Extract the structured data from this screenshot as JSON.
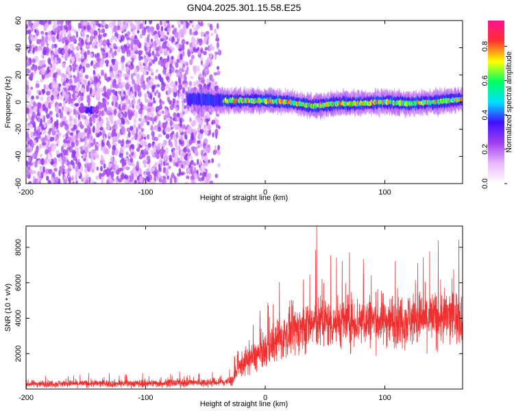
{
  "title": "GN04.2025.301.15.58.E25",
  "chart_data": [
    {
      "type": "heatmap",
      "xlabel": "Height of straight line (km)",
      "ylabel": "Frequency (Hz)",
      "xlim": [
        -200,
        165
      ],
      "ylim": [
        -60,
        60
      ],
      "xticks": [
        -200,
        -100,
        0,
        100
      ],
      "yticks": [
        60,
        40,
        20,
        0,
        -20,
        -40,
        -60
      ],
      "colorbar": {
        "label": "Normalized spectral amplitude",
        "range": [
          0,
          0.95
        ],
        "ticks": [
          0.0,
          0.2,
          0.4,
          0.6,
          0.8
        ],
        "colormap": [
          "#ffffff",
          "#e9b8ff",
          "#a040f0",
          "#4010ff",
          "#00e0ff",
          "#00ff60",
          "#ffff00",
          "#ff3030",
          "#ff1090"
        ]
      },
      "regions": [
        {
          "x": [
            -200,
            -38
          ],
          "freq": [
            -60,
            60
          ],
          "amplitude": 0.15,
          "description": "broadband noise"
        },
        {
          "x": [
            -155,
            -140
          ],
          "freq": [
            -8,
            -4
          ],
          "amplitude": 0.25
        },
        {
          "x": [
            -65,
            165
          ],
          "freq": [
            -8,
            6
          ],
          "amplitude": 0.7,
          "description": "signal band"
        }
      ],
      "signal_band_center": [
        {
          "x": -60,
          "y": 2
        },
        {
          "x": -30,
          "y": 1
        },
        {
          "x": 0,
          "y": 1
        },
        {
          "x": 20,
          "y": 0
        },
        {
          "x": 40,
          "y": -3
        },
        {
          "x": 60,
          "y": -1
        },
        {
          "x": 80,
          "y": -1
        },
        {
          "x": 100,
          "y": 0
        },
        {
          "x": 120,
          "y": -1
        },
        {
          "x": 140,
          "y": 0
        },
        {
          "x": 165,
          "y": 2
        }
      ]
    },
    {
      "type": "line",
      "xlabel": "Height of straight line (km)",
      "ylabel": "SNR (10 * v/v)",
      "xlim": [
        -200,
        165
      ],
      "ylim": [
        0,
        9200
      ],
      "xticks": [
        -200,
        -100,
        0,
        100
      ],
      "yticks": [
        2000,
        4000,
        6000,
        8000
      ],
      "color": "#ee3030",
      "envelope": [
        {
          "x": -200,
          "mean": 300,
          "amp": 250
        },
        {
          "x": -100,
          "mean": 320,
          "amp": 280
        },
        {
          "x": -40,
          "mean": 380,
          "amp": 320
        },
        {
          "x": -28,
          "mean": 450,
          "amp": 400
        },
        {
          "x": -20,
          "mean": 1400,
          "amp": 900
        },
        {
          "x": 0,
          "mean": 2200,
          "amp": 1300
        },
        {
          "x": 20,
          "mean": 3200,
          "amp": 1700
        },
        {
          "x": 40,
          "mean": 3700,
          "amp": 1900
        },
        {
          "x": 60,
          "mean": 3800,
          "amp": 1900
        },
        {
          "x": 100,
          "mean": 3900,
          "amp": 1900
        },
        {
          "x": 140,
          "mean": 4000,
          "amp": 2000
        },
        {
          "x": 165,
          "mean": 4100,
          "amp": 2000
        }
      ],
      "peak": {
        "x": 43,
        "y": 9200
      }
    }
  ]
}
